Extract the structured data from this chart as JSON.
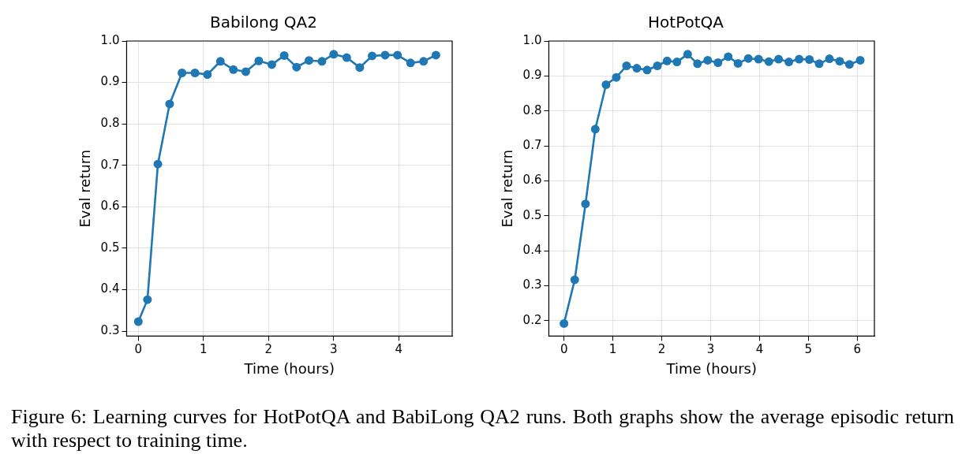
{
  "chart_data": [
    {
      "type": "line",
      "title": "Babilong QA2",
      "xlabel": "Time (hours)",
      "ylabel": "Eval return",
      "xlim": [
        -0.18,
        4.82
      ],
      "xticks": [
        0,
        1,
        2,
        3,
        4
      ],
      "ylim": [
        0.288,
        1.0
      ],
      "yticks": [
        0.3,
        0.4,
        0.5,
        0.6,
        0.7,
        0.8,
        0.9,
        {
          "value": 1,
          "label": "1.0"
        }
      ],
      "grid": true,
      "legend": false,
      "marker": "circle",
      "line_style": "solid",
      "series": [
        {
          "color": "#1f77b4",
          "x": [
            0,
            0.14,
            0.3,
            0.48,
            0.67,
            0.87,
            1.06,
            1.26,
            1.46,
            1.65,
            1.85,
            2.05,
            2.24,
            2.43,
            2.62,
            2.82,
            3.0,
            3.2,
            3.4,
            3.59,
            3.79,
            3.98,
            4.18,
            4.38,
            4.57
          ],
          "values": [
            0.323,
            0.376,
            0.703,
            0.848,
            0.923,
            0.923,
            0.919,
            0.951,
            0.931,
            0.926,
            0.952,
            0.943,
            0.965,
            0.937,
            0.953,
            0.951,
            0.968,
            0.96,
            0.936,
            0.964,
            0.966,
            0.966,
            0.947,
            0.951,
            0.966
          ]
        }
      ],
      "annotations": [
        "Figure 6: Learning curves for HotPotQA and BabiLong QA2 runs. Both graphs show the average episodic return with respect to training time."
      ]
    },
    {
      "type": "line",
      "title": "HotPotQA",
      "xlabel": "Time (hours)",
      "ylabel": "Eval return",
      "xlim": [
        -0.31,
        6.35
      ],
      "xticks": [
        0,
        1,
        2,
        3,
        4,
        5,
        6
      ],
      "ylim": [
        0.156,
        1.0
      ],
      "yticks": [
        0.2,
        0.3,
        0.4,
        0.5,
        0.6,
        0.7,
        0.8,
        0.9,
        {
          "value": 1,
          "label": "1.0"
        }
      ],
      "grid": true,
      "legend": false,
      "marker": "circle",
      "line_style": "solid",
      "series": [
        {
          "color": "#1f77b4",
          "x": [
            0,
            0.22,
            0.44,
            0.64,
            0.86,
            1.07,
            1.28,
            1.49,
            1.7,
            1.91,
            2.11,
            2.31,
            2.53,
            2.73,
            2.94,
            3.15,
            3.36,
            3.56,
            3.77,
            3.98,
            4.19,
            4.39,
            4.6,
            4.81,
            5.02,
            5.22,
            5.43,
            5.64,
            5.84,
            6.06
          ],
          "values": [
            0.192,
            0.317,
            0.534,
            0.748,
            0.875,
            0.896,
            0.929,
            0.922,
            0.917,
            0.929,
            0.943,
            0.94,
            0.962,
            0.935,
            0.945,
            0.938,
            0.955,
            0.936,
            0.95,
            0.948,
            0.941,
            0.948,
            0.94,
            0.948,
            0.947,
            0.935,
            0.949,
            0.942,
            0.933,
            0.945
          ]
        }
      ]
    }
  ]
}
